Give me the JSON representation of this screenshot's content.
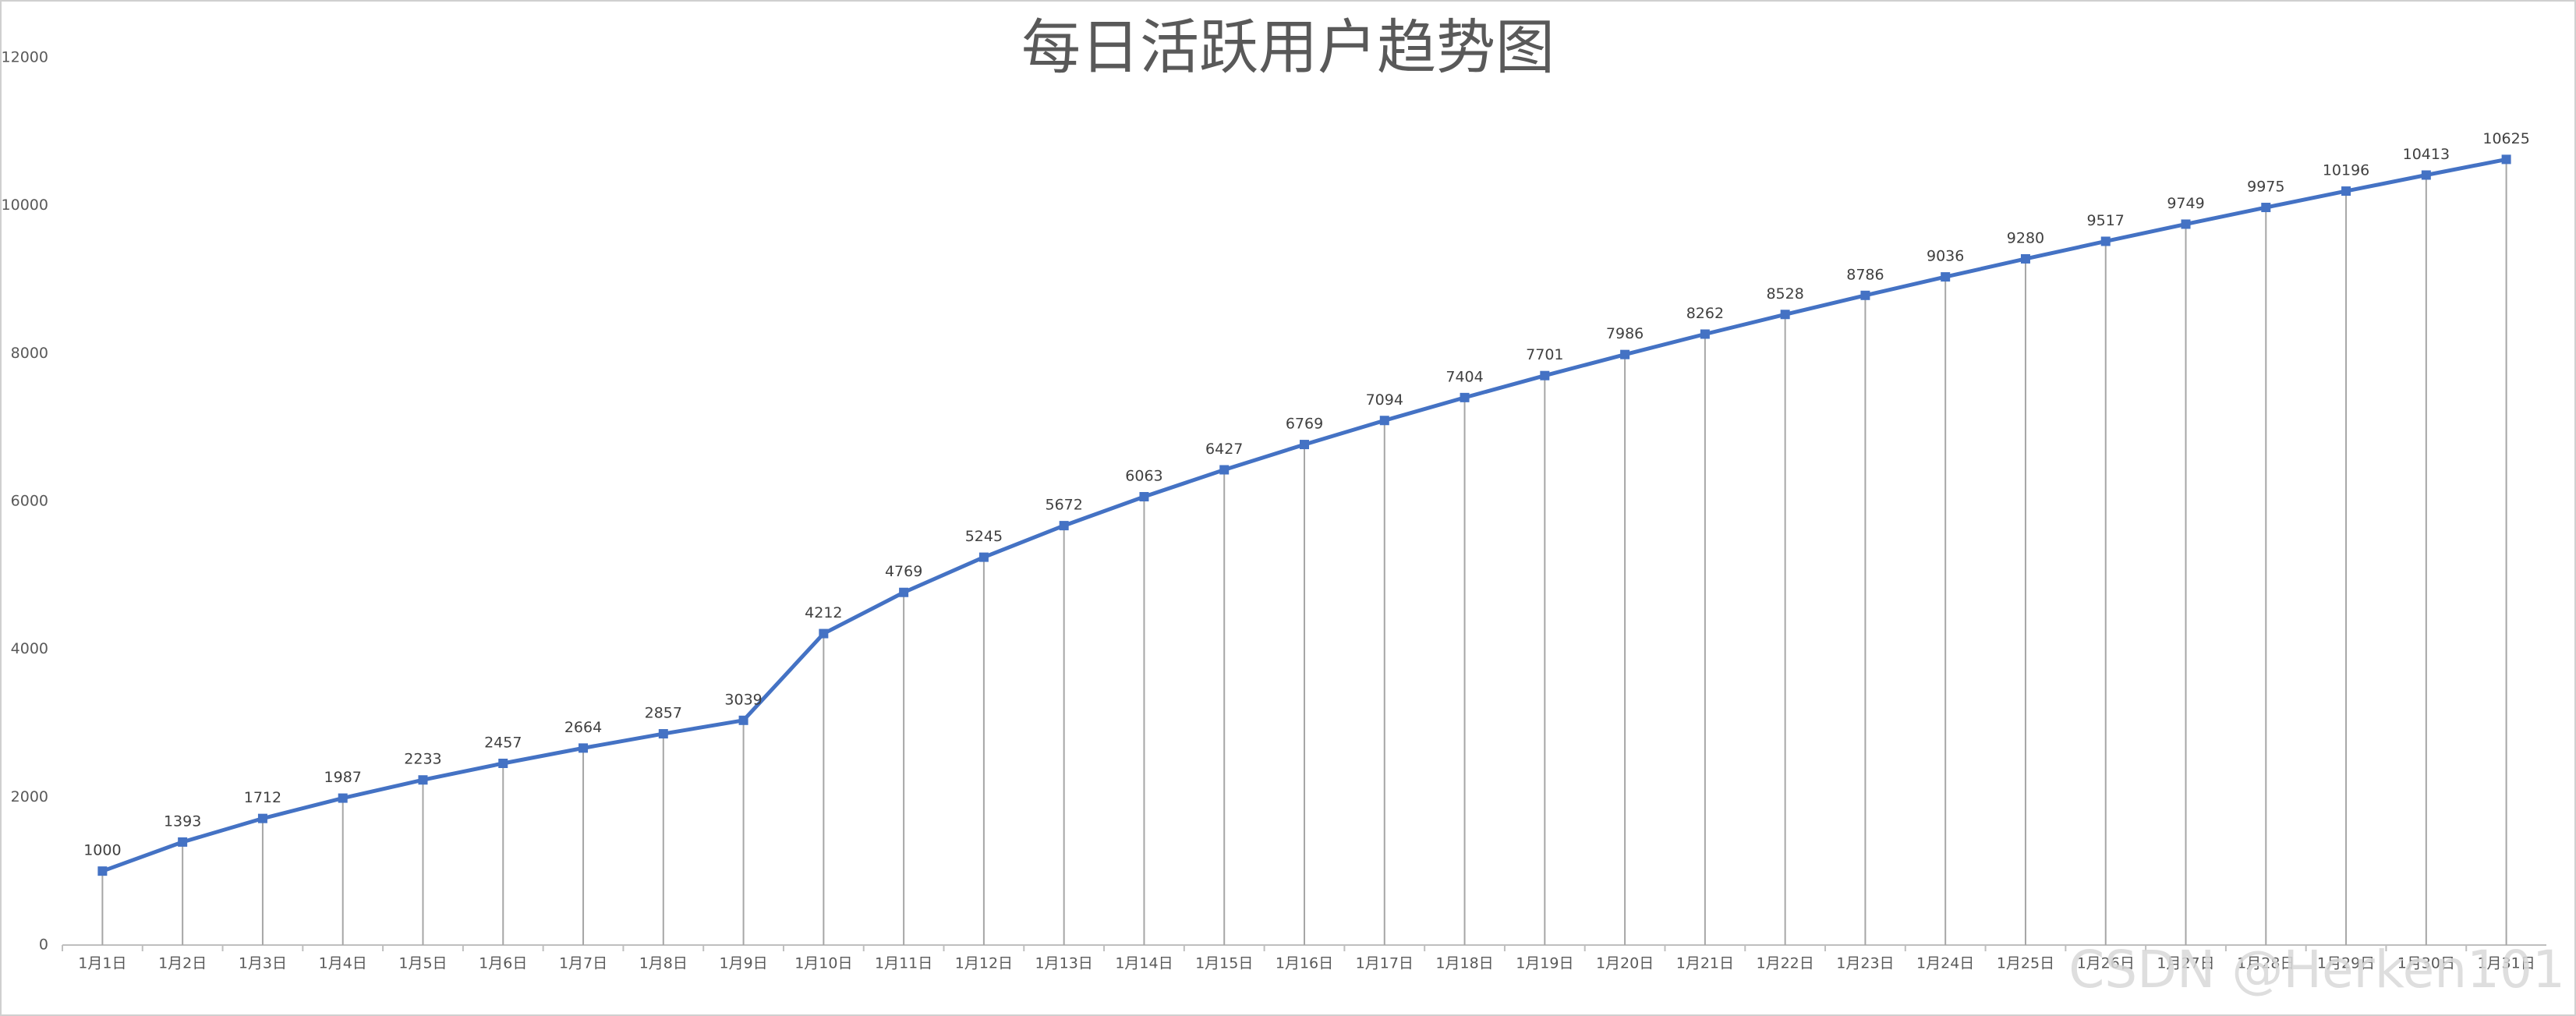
{
  "chart_data": {
    "type": "line",
    "title": "每日活跃用户趋势图",
    "categories": [
      "1月1日",
      "1月2日",
      "1月3日",
      "1月4日",
      "1月5日",
      "1月6日",
      "1月7日",
      "1月8日",
      "1月9日",
      "1月10日",
      "1月11日",
      "1月12日",
      "1月13日",
      "1月14日",
      "1月15日",
      "1月16日",
      "1月17日",
      "1月18日",
      "1月19日",
      "1月20日",
      "1月21日",
      "1月22日",
      "1月23日",
      "1月24日",
      "1月25日",
      "1月26日",
      "1月27日",
      "1月28日",
      "1月29日",
      "1月30日",
      "1月31日"
    ],
    "values": [
      1000,
      1393,
      1712,
      1987,
      2233,
      2457,
      2664,
      2857,
      3039,
      4212,
      4769,
      5245,
      5672,
      6063,
      6427,
      6769,
      7094,
      7404,
      7701,
      7986,
      8262,
      8528,
      8786,
      9036,
      9280,
      9517,
      9749,
      9975,
      10196,
      10413,
      10625
    ],
    "color": "#4472c4",
    "drop_lines": true,
    "data_labels": true,
    "grid": false,
    "ylim": [
      0,
      12000
    ],
    "yticks": [
      0,
      2000,
      4000,
      6000,
      8000,
      10000,
      12000
    ],
    "watermark": "CSDN @Herken101"
  }
}
